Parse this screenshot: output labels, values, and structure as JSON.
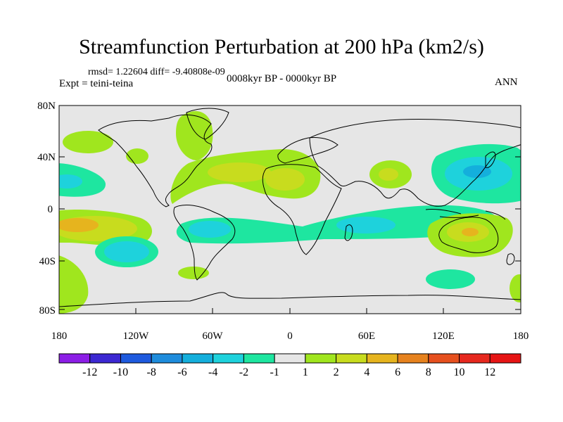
{
  "figure": {
    "title": "Streamfunction Perturbation at 200 hPa (km2/s)",
    "stats": "rmsd= 1.22604 diff= -9.40808e-09",
    "experiment": "Expt = teini-teina",
    "period": "0008kyr BP - 0000kyr BP",
    "season": "ANN"
  },
  "axes": {
    "lat_ticks": [
      "80N",
      "40N",
      "0",
      "40S",
      "80S"
    ],
    "lon_ticks": [
      "180",
      "120W",
      "60W",
      "0",
      "60E",
      "120E",
      "180"
    ]
  },
  "colorbar": {
    "labels": [
      "-12",
      "-10",
      "-8",
      "-6",
      "-4",
      "-2",
      "-1",
      "1",
      "2",
      "4",
      "6",
      "8",
      "10",
      "12"
    ],
    "colors": [
      "#8c1ee6",
      "#3c28d2",
      "#1e5ade",
      "#1e8cdc",
      "#14afdc",
      "#1ed2dc",
      "#1ee6a0",
      "#e6e6e6",
      "#a0e61e",
      "#c8dc1e",
      "#e6b41e",
      "#e6821e",
      "#e6501e",
      "#e6281e",
      "#e61414"
    ]
  },
  "colors": {
    "neutral": "#e6e6e6",
    "pos1": "#a0e61e",
    "pos2": "#c8dc1e",
    "pos3": "#e6b41e",
    "neg1": "#1ee6a0",
    "neg2": "#1ed2dc",
    "coast": "#000000"
  }
}
